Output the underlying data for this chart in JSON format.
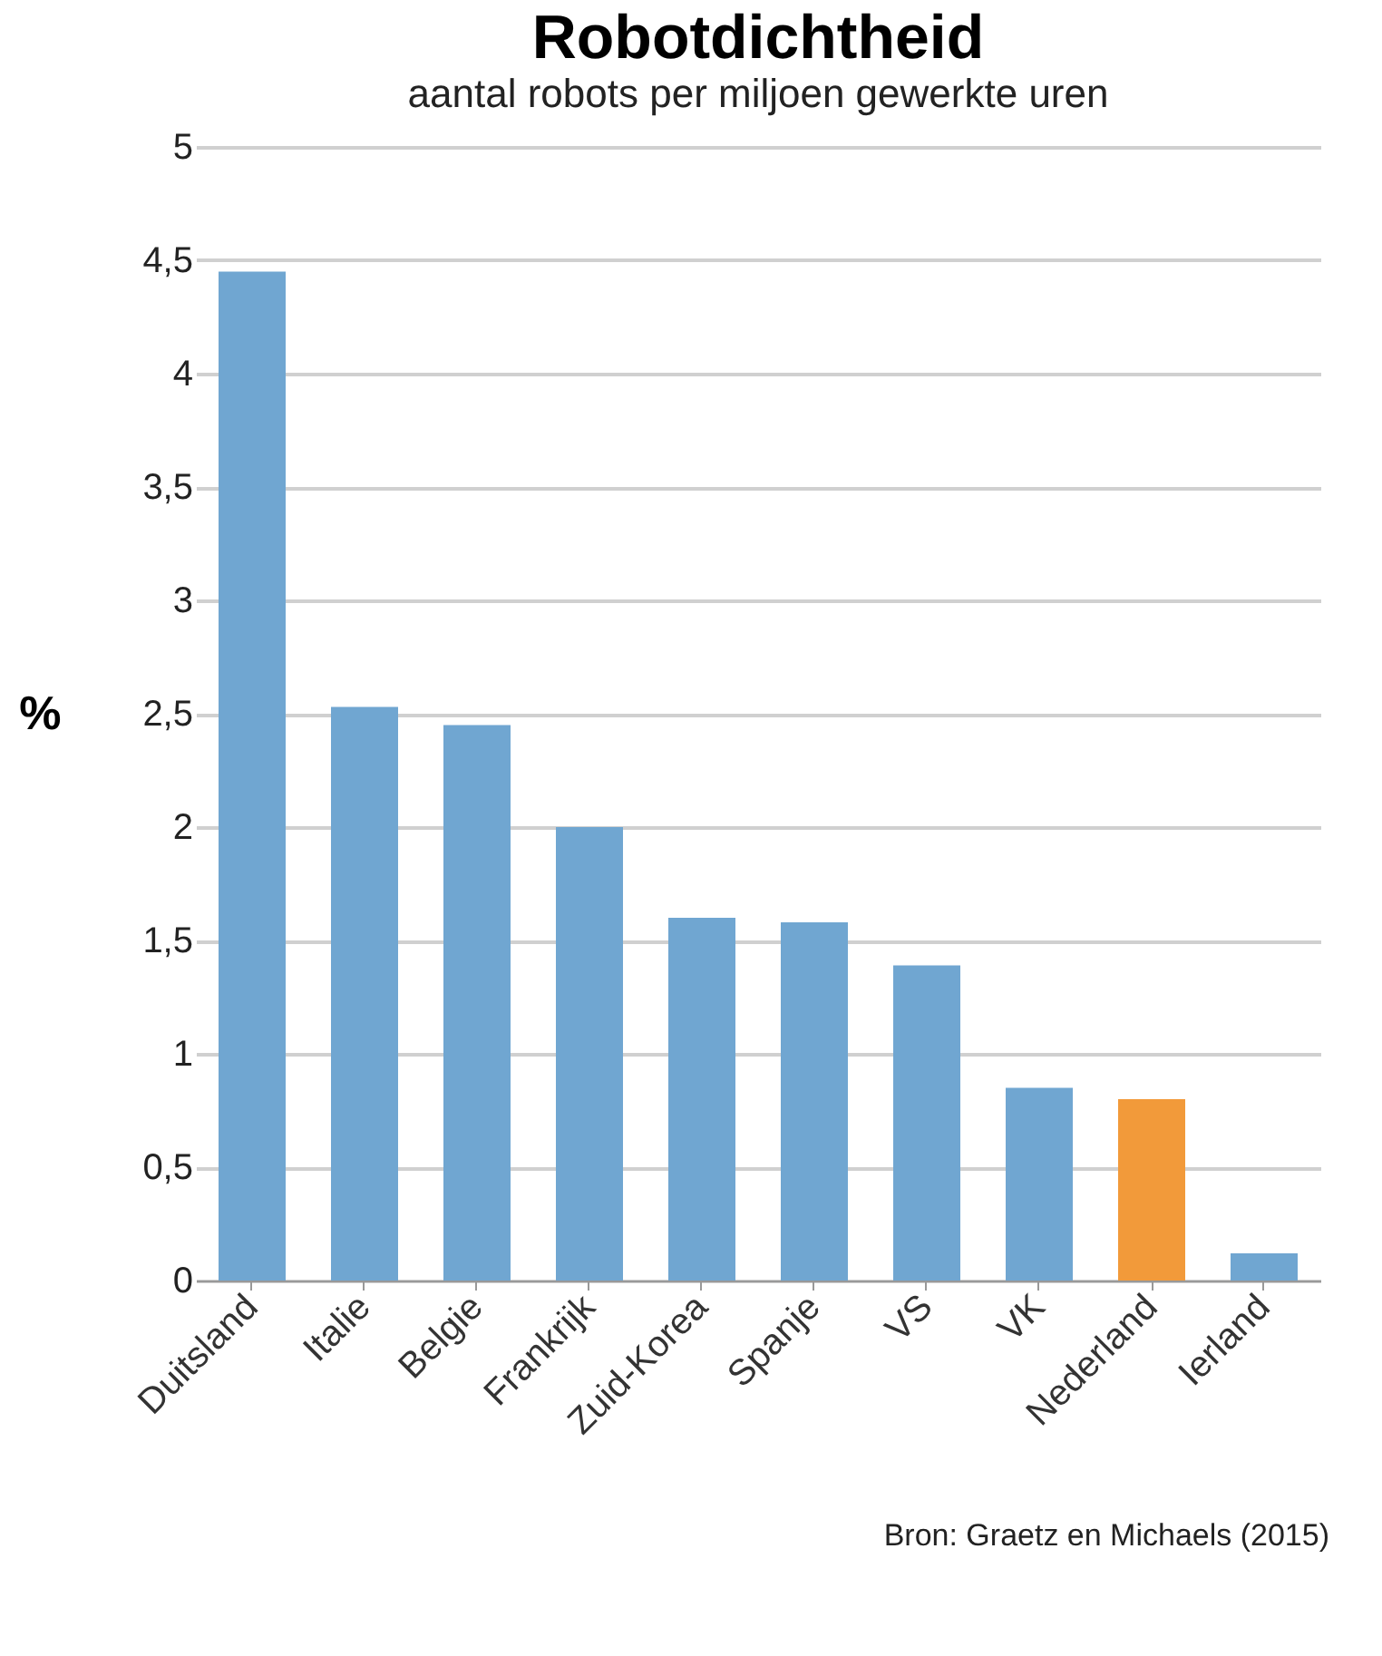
{
  "chart_data": {
    "type": "bar",
    "title": "Robotdichtheid",
    "subtitle": "aantal robots per miljoen gewerkte uren",
    "ylabel": "%",
    "categories": [
      "Duitsland",
      "Italie",
      "Belgie",
      "Frankrijk",
      "Zuid-Korea",
      "Spanje",
      "VS",
      "VK",
      "Nederland",
      "Ierland"
    ],
    "values": [
      4.45,
      2.53,
      2.45,
      2.0,
      1.6,
      1.58,
      1.39,
      0.85,
      0.8,
      0.12
    ],
    "colors": [
      "#70a6d1",
      "#70a6d1",
      "#70a6d1",
      "#70a6d1",
      "#70a6d1",
      "#70a6d1",
      "#70a6d1",
      "#70a6d1",
      "#f29a3a",
      "#70a6d1"
    ],
    "ylim": [
      0,
      5
    ],
    "yticks": [
      0,
      {
        "value": 0.5,
        "label": "0,5"
      },
      1,
      {
        "value": 1.5,
        "label": "1,5"
      },
      2,
      {
        "value": 2.5,
        "label": "2,5"
      },
      3,
      {
        "value": 3.5,
        "label": "3,5"
      },
      4,
      {
        "value": 4.5,
        "label": "4,5"
      },
      5
    ],
    "grid": "y",
    "legend": false,
    "annotations": [
      "Bron: Graetz en Michaels (2015)"
    ]
  }
}
